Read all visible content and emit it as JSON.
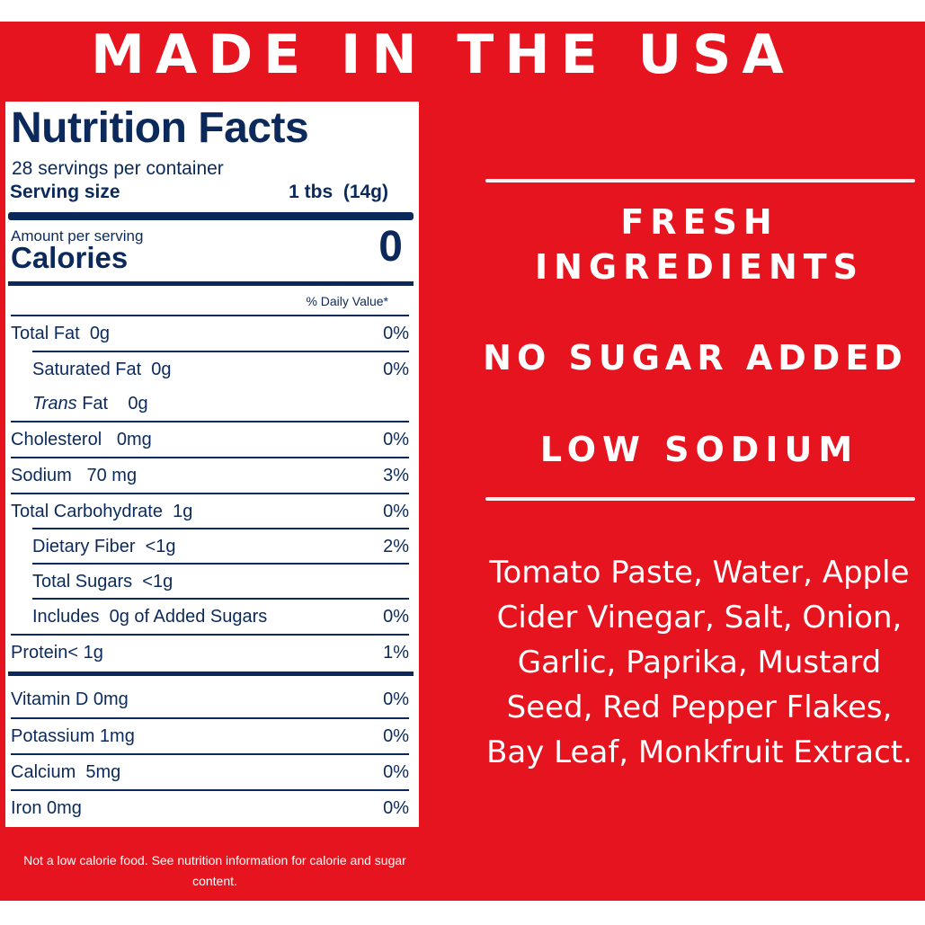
{
  "banner": {
    "headline": "MADE IN THE USA"
  },
  "label": {
    "title": "Nutrition Facts",
    "servings": "28 servings per container",
    "serving_size_label": "Serving size",
    "serving_size_value": "1 tbs  (14g)",
    "amount_per_serving": "Amount per serving",
    "calories_label": "Calories",
    "calories_value": "0",
    "daily_value_header": "% Daily Value*",
    "rows": [
      {
        "name": "Total Fat  0g",
        "dv": "0%"
      },
      {
        "name": "Saturated Fat  0g",
        "dv": "0%"
      },
      {
        "name_italic": "Trans",
        "name_rest": " Fat    0g",
        "dv": ""
      },
      {
        "name": "Cholesterol   0mg",
        "dv": "0%"
      },
      {
        "name": "Sodium   70 mg",
        "dv": "3%"
      },
      {
        "name": "Total Carbohydrate  1g",
        "dv": "0%"
      },
      {
        "name": "Dietary Fiber  <1g",
        "dv": "2%"
      },
      {
        "name": "Total Sugars  <1g",
        "dv": ""
      },
      {
        "name": "Includes  0g of Added Sugars",
        "dv": "0%"
      },
      {
        "name": "Protein< 1g",
        "dv": "1%"
      },
      {
        "name": "Vitamin D 0mg",
        "dv": "0%"
      },
      {
        "name": "Potassium 1mg",
        "dv": "0%"
      },
      {
        "name": "Calcium  5mg",
        "dv": "0%"
      },
      {
        "name": "Iron 0mg",
        "dv": "0%"
      }
    ]
  },
  "footnote": "Not a low calorie food. See nutrition information for calorie and sugar content.",
  "claims": {
    "fresh_line1": "FRESH",
    "fresh_line2": "INGREDIENTS",
    "no_sugar": "NO SUGAR ADDED",
    "low_sodium": "LOW SODIUM"
  },
  "ingredients": "Tomato Paste, Water, Apple Cider Vinegar, Salt, Onion, Garlic, Paprika, Mustard Seed, Red Pepper Flakes, Bay Leaf, Monkfruit Extract.",
  "colors": {
    "red": "#e5141e",
    "navy": "#0b2a5b",
    "white": "#ffffff"
  }
}
